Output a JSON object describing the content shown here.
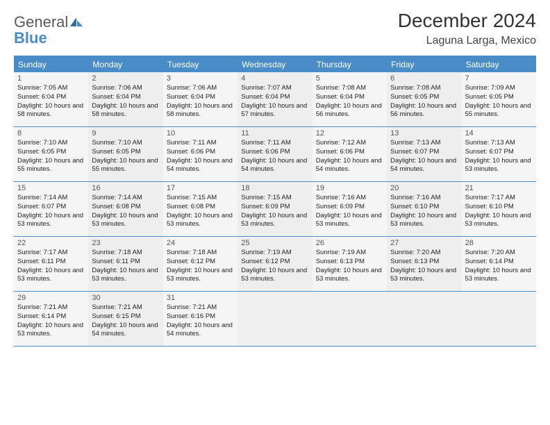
{
  "brand": {
    "word1": "General",
    "word2": "Blue"
  },
  "title": "December 2024",
  "location": "Laguna Larga, Mexico",
  "colors": {
    "header_blue": "#4a8cc7",
    "text": "#333333",
    "cell_bg": "#f5f5f5",
    "cell_bg_alt": "#eeeeee",
    "white": "#ffffff"
  },
  "day_names": [
    "Sunday",
    "Monday",
    "Tuesday",
    "Wednesday",
    "Thursday",
    "Friday",
    "Saturday"
  ],
  "weeks": [
    [
      {
        "n": "1",
        "sr": "Sunrise: 7:05 AM",
        "ss": "Sunset: 6:04 PM",
        "dl": "Daylight: 10 hours and 58 minutes."
      },
      {
        "n": "2",
        "sr": "Sunrise: 7:06 AM",
        "ss": "Sunset: 6:04 PM",
        "dl": "Daylight: 10 hours and 58 minutes."
      },
      {
        "n": "3",
        "sr": "Sunrise: 7:06 AM",
        "ss": "Sunset: 6:04 PM",
        "dl": "Daylight: 10 hours and 58 minutes."
      },
      {
        "n": "4",
        "sr": "Sunrise: 7:07 AM",
        "ss": "Sunset: 6:04 PM",
        "dl": "Daylight: 10 hours and 57 minutes."
      },
      {
        "n": "5",
        "sr": "Sunrise: 7:08 AM",
        "ss": "Sunset: 6:04 PM",
        "dl": "Daylight: 10 hours and 56 minutes."
      },
      {
        "n": "6",
        "sr": "Sunrise: 7:08 AM",
        "ss": "Sunset: 6:05 PM",
        "dl": "Daylight: 10 hours and 56 minutes."
      },
      {
        "n": "7",
        "sr": "Sunrise: 7:09 AM",
        "ss": "Sunset: 6:05 PM",
        "dl": "Daylight: 10 hours and 55 minutes."
      }
    ],
    [
      {
        "n": "8",
        "sr": "Sunrise: 7:10 AM",
        "ss": "Sunset: 6:05 PM",
        "dl": "Daylight: 10 hours and 55 minutes."
      },
      {
        "n": "9",
        "sr": "Sunrise: 7:10 AM",
        "ss": "Sunset: 6:05 PM",
        "dl": "Daylight: 10 hours and 55 minutes."
      },
      {
        "n": "10",
        "sr": "Sunrise: 7:11 AM",
        "ss": "Sunset: 6:06 PM",
        "dl": "Daylight: 10 hours and 54 minutes."
      },
      {
        "n": "11",
        "sr": "Sunrise: 7:11 AM",
        "ss": "Sunset: 6:06 PM",
        "dl": "Daylight: 10 hours and 54 minutes."
      },
      {
        "n": "12",
        "sr": "Sunrise: 7:12 AM",
        "ss": "Sunset: 6:06 PM",
        "dl": "Daylight: 10 hours and 54 minutes."
      },
      {
        "n": "13",
        "sr": "Sunrise: 7:13 AM",
        "ss": "Sunset: 6:07 PM",
        "dl": "Daylight: 10 hours and 54 minutes."
      },
      {
        "n": "14",
        "sr": "Sunrise: 7:13 AM",
        "ss": "Sunset: 6:07 PM",
        "dl": "Daylight: 10 hours and 53 minutes."
      }
    ],
    [
      {
        "n": "15",
        "sr": "Sunrise: 7:14 AM",
        "ss": "Sunset: 6:07 PM",
        "dl": "Daylight: 10 hours and 53 minutes."
      },
      {
        "n": "16",
        "sr": "Sunrise: 7:14 AM",
        "ss": "Sunset: 6:08 PM",
        "dl": "Daylight: 10 hours and 53 minutes."
      },
      {
        "n": "17",
        "sr": "Sunrise: 7:15 AM",
        "ss": "Sunset: 6:08 PM",
        "dl": "Daylight: 10 hours and 53 minutes."
      },
      {
        "n": "18",
        "sr": "Sunrise: 7:15 AM",
        "ss": "Sunset: 6:09 PM",
        "dl": "Daylight: 10 hours and 53 minutes."
      },
      {
        "n": "19",
        "sr": "Sunrise: 7:16 AM",
        "ss": "Sunset: 6:09 PM",
        "dl": "Daylight: 10 hours and 53 minutes."
      },
      {
        "n": "20",
        "sr": "Sunrise: 7:16 AM",
        "ss": "Sunset: 6:10 PM",
        "dl": "Daylight: 10 hours and 53 minutes."
      },
      {
        "n": "21",
        "sr": "Sunrise: 7:17 AM",
        "ss": "Sunset: 6:10 PM",
        "dl": "Daylight: 10 hours and 53 minutes."
      }
    ],
    [
      {
        "n": "22",
        "sr": "Sunrise: 7:17 AM",
        "ss": "Sunset: 6:11 PM",
        "dl": "Daylight: 10 hours and 53 minutes."
      },
      {
        "n": "23",
        "sr": "Sunrise: 7:18 AM",
        "ss": "Sunset: 6:11 PM",
        "dl": "Daylight: 10 hours and 53 minutes."
      },
      {
        "n": "24",
        "sr": "Sunrise: 7:18 AM",
        "ss": "Sunset: 6:12 PM",
        "dl": "Daylight: 10 hours and 53 minutes."
      },
      {
        "n": "25",
        "sr": "Sunrise: 7:19 AM",
        "ss": "Sunset: 6:12 PM",
        "dl": "Daylight: 10 hours and 53 minutes."
      },
      {
        "n": "26",
        "sr": "Sunrise: 7:19 AM",
        "ss": "Sunset: 6:13 PM",
        "dl": "Daylight: 10 hours and 53 minutes."
      },
      {
        "n": "27",
        "sr": "Sunrise: 7:20 AM",
        "ss": "Sunset: 6:13 PM",
        "dl": "Daylight: 10 hours and 53 minutes."
      },
      {
        "n": "28",
        "sr": "Sunrise: 7:20 AM",
        "ss": "Sunset: 6:14 PM",
        "dl": "Daylight: 10 hours and 53 minutes."
      }
    ],
    [
      {
        "n": "29",
        "sr": "Sunrise: 7:21 AM",
        "ss": "Sunset: 6:14 PM",
        "dl": "Daylight: 10 hours and 53 minutes."
      },
      {
        "n": "30",
        "sr": "Sunrise: 7:21 AM",
        "ss": "Sunset: 6:15 PM",
        "dl": "Daylight: 10 hours and 54 minutes."
      },
      {
        "n": "31",
        "sr": "Sunrise: 7:21 AM",
        "ss": "Sunset: 6:16 PM",
        "dl": "Daylight: 10 hours and 54 minutes."
      },
      null,
      null,
      null,
      null
    ]
  ]
}
